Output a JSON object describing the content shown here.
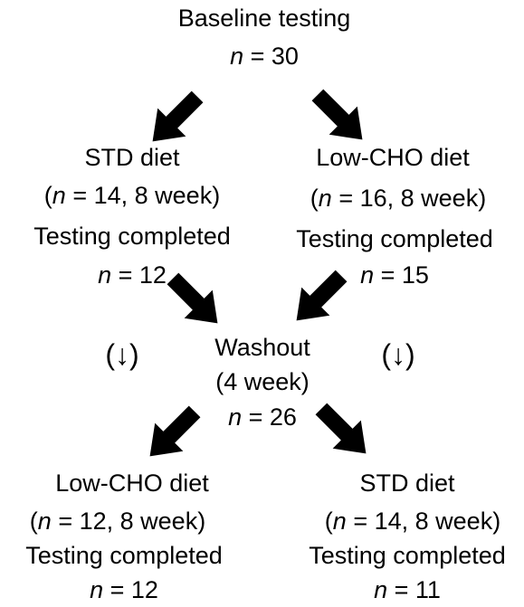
{
  "baseline": {
    "title": "Baseline testing",
    "n_label": "n",
    "n_value": " = 30"
  },
  "phase1": {
    "left": {
      "title": "STD diet",
      "detail_open": "(",
      "detail_n": "n",
      "detail_rest": " = 14, 8 week)",
      "completed": "Testing completed",
      "n_label": "n",
      "n_value": " = 12"
    },
    "right": {
      "title": "Low-CHO diet",
      "detail_open": "(",
      "detail_n": "n",
      "detail_rest": " = 16, 8 week)",
      "completed": "Testing completed",
      "n_label": "n",
      "n_value": " = 15"
    }
  },
  "washout": {
    "title": "Washout",
    "duration": "(4 week)",
    "n_label": "n",
    "n_value": " = 26",
    "side_marker": "(↓)"
  },
  "phase2": {
    "left": {
      "title": "Low-CHO diet",
      "detail_open": "(",
      "detail_n": "n",
      "detail_rest": " = 12, 8 week)",
      "completed": "Testing completed",
      "n_label": "n",
      "n_value": " = 12"
    },
    "right": {
      "title": "STD diet",
      "detail_open": "(",
      "detail_n": "n",
      "detail_rest": " = 14, 8 week)",
      "completed": "Testing completed",
      "n_label": "n",
      "n_value": " = 11"
    }
  },
  "colors": {
    "text": "#000000",
    "arrow": "#000000",
    "background": "#ffffff"
  }
}
